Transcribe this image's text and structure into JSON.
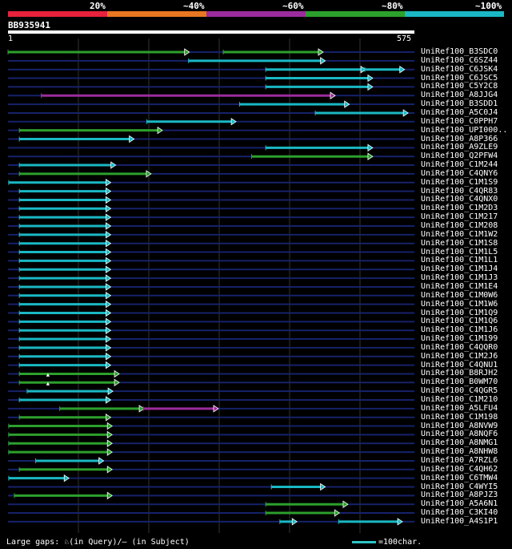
{
  "header": {
    "identity_labels": [
      "20%",
      "~40%",
      "~60%",
      "~80%",
      "~100%"
    ],
    "identity_colors": [
      "#e8223c",
      "#e87722",
      "#9c2c9c",
      "#2ca02c",
      "#1ab8c4"
    ],
    "query_id": "BB935941",
    "query_start": "1",
    "query_end": "575"
  },
  "hits": [
    {
      "label": "UniRef100_B3SDC0",
      "color": "#2ca02c",
      "segs": [
        [
          1,
          256
        ],
        [
          305,
          445
        ]
      ]
    },
    {
      "label": "UniRef100_C6SZ44",
      "color": "#1ab8c4",
      "segs": [
        [
          256,
          448
        ]
      ]
    },
    {
      "label": "UniRef100_C6JSK4",
      "color": "#1ab8c4",
      "segs": [
        [
          365,
          505
        ],
        [
          505,
          560
        ]
      ]
    },
    {
      "label": "UniRef100_C6JSC5",
      "color": "#1ab8c4",
      "segs": [
        [
          365,
          515
        ]
      ]
    },
    {
      "label": "UniRef100_C5Y2C8",
      "color": "#1ab8c4",
      "segs": [
        [
          365,
          515
        ]
      ]
    },
    {
      "label": "UniRef100_A8JJG4",
      "color": "#9c2c9c",
      "segs": [
        [
          48,
          462
        ]
      ]
    },
    {
      "label": "UniRef100_B3SDD1",
      "color": "#1ab8c4",
      "segs": [
        [
          328,
          482
        ]
      ]
    },
    {
      "label": "UniRef100_A5C0J4",
      "color": "#1ab8c4",
      "segs": [
        [
          435,
          565
        ]
      ]
    },
    {
      "label": "UniRef100_C0PPH7",
      "color": "#1ab8c4",
      "segs": [
        [
          197,
          322
        ]
      ]
    },
    {
      "label": "UniRef100_UPI000..",
      "color": "#2ca02c",
      "segs": [
        [
          17,
          218
        ]
      ]
    },
    {
      "label": "UniRef100_A8P366",
      "color": "#1ab8c4",
      "segs": [
        [
          17,
          178
        ]
      ]
    },
    {
      "label": "UniRef100_A9ZLE9",
      "color": "#1ab8c4",
      "segs": [
        [
          365,
          515
        ]
      ]
    },
    {
      "label": "UniRef100_Q2PFW4",
      "color": "#2ca02c",
      "segs": [
        [
          345,
          515
        ]
      ]
    },
    {
      "label": "UniRef100_C1M244",
      "color": "#1ab8c4",
      "segs": [
        [
          17,
          152
        ]
      ]
    },
    {
      "label": "UniRef100_C4QNY6",
      "color": "#2ca02c",
      "segs": [
        [
          17,
          202
        ]
      ]
    },
    {
      "label": "UniRef100_C1M1S9",
      "color": "#1ab8c4",
      "segs": [
        [
          2,
          145
        ]
      ]
    },
    {
      "label": "UniRef100_C4QR83",
      "color": "#1ab8c4",
      "segs": [
        [
          17,
          145
        ]
      ]
    },
    {
      "label": "UniRef100_C4QNX0",
      "color": "#1ab8c4",
      "segs": [
        [
          17,
          145
        ]
      ]
    },
    {
      "label": "UniRef100_C1M2D3",
      "color": "#1ab8c4",
      "segs": [
        [
          17,
          145
        ]
      ]
    },
    {
      "label": "UniRef100_C1M217",
      "color": "#1ab8c4",
      "segs": [
        [
          17,
          145
        ]
      ]
    },
    {
      "label": "UniRef100_C1M208",
      "color": "#1ab8c4",
      "segs": [
        [
          17,
          145
        ]
      ]
    },
    {
      "label": "UniRef100_C1M1W2",
      "color": "#1ab8c4",
      "segs": [
        [
          17,
          145
        ]
      ]
    },
    {
      "label": "UniRef100_C1M1S8",
      "color": "#1ab8c4",
      "segs": [
        [
          17,
          145
        ]
      ]
    },
    {
      "label": "UniRef100_C1M1L5",
      "color": "#1ab8c4",
      "segs": [
        [
          17,
          145
        ]
      ]
    },
    {
      "label": "UniRef100_C1M1L1",
      "color": "#1ab8c4",
      "segs": [
        [
          17,
          145
        ]
      ]
    },
    {
      "label": "UniRef100_C1M1J4",
      "color": "#1ab8c4",
      "segs": [
        [
          17,
          145
        ]
      ]
    },
    {
      "label": "UniRef100_C1M1J3",
      "color": "#1ab8c4",
      "segs": [
        [
          17,
          145
        ]
      ]
    },
    {
      "label": "UniRef100_C1M1E4",
      "color": "#1ab8c4",
      "segs": [
        [
          17,
          145
        ]
      ]
    },
    {
      "label": "UniRef100_C1M0W6",
      "color": "#1ab8c4",
      "segs": [
        [
          17,
          145
        ]
      ]
    },
    {
      "label": "UniRef100_C1M1W6",
      "color": "#1ab8c4",
      "segs": [
        [
          17,
          145
        ]
      ]
    },
    {
      "label": "UniRef100_C1M1Q9",
      "color": "#1ab8c4",
      "segs": [
        [
          17,
          145
        ]
      ]
    },
    {
      "label": "UniRef100_C1M1Q6",
      "color": "#1ab8c4",
      "segs": [
        [
          17,
          145
        ]
      ]
    },
    {
      "label": "UniRef100_C1M1J6",
      "color": "#1ab8c4",
      "segs": [
        [
          17,
          145
        ]
      ]
    },
    {
      "label": "UniRef100_C1M199",
      "color": "#1ab8c4",
      "segs": [
        [
          17,
          145
        ]
      ]
    },
    {
      "label": "UniRef100_C4QQR0",
      "color": "#1ab8c4",
      "segs": [
        [
          17,
          145
        ]
      ]
    },
    {
      "label": "UniRef100_C1M2J6",
      "color": "#1ab8c4",
      "segs": [
        [
          17,
          145
        ]
      ]
    },
    {
      "label": "UniRef100_C4QNU1",
      "color": "#1ab8c4",
      "segs": [
        [
          17,
          145
        ]
      ]
    },
    {
      "label": "UniRef100_B8RJH2",
      "color": "#2ca02c",
      "segs": [
        [
          17,
          157
        ]
      ],
      "gap": 55
    },
    {
      "label": "UniRef100_B0WM70",
      "color": "#2ca02c",
      "segs": [
        [
          17,
          157
        ]
      ],
      "gap": 55
    },
    {
      "label": "UniRef100_C4QGR5",
      "color": "#1ab8c4",
      "segs": [
        [
          28,
          148
        ]
      ]
    },
    {
      "label": "UniRef100_C1M210",
      "color": "#1ab8c4",
      "segs": [
        [
          17,
          145
        ]
      ]
    },
    {
      "label": "UniRef100_A5LFU4",
      "color": "#2ca02c",
      "segs": [
        [
          74,
          192
        ],
        [
          192,
          297
        ]
      ],
      "seg2color": "#9c2c9c"
    },
    {
      "label": "UniRef100_C1M198",
      "color": "#2ca02c",
      "segs": [
        [
          17,
          145
        ]
      ]
    },
    {
      "label": "UniRef100_A8NVW9",
      "color": "#2ca02c",
      "segs": [
        [
          2,
          147
        ]
      ]
    },
    {
      "label": "UniRef100_A8NQF6",
      "color": "#2ca02c",
      "segs": [
        [
          2,
          147
        ]
      ]
    },
    {
      "label": "UniRef100_A8NMG1",
      "color": "#2ca02c",
      "segs": [
        [
          2,
          147
        ]
      ]
    },
    {
      "label": "UniRef100_A8NHW8",
      "color": "#2ca02c",
      "segs": [
        [
          2,
          147
        ]
      ]
    },
    {
      "label": "UniRef100_A7RZL6",
      "color": "#1ab8c4",
      "segs": [
        [
          40,
          135
        ]
      ]
    },
    {
      "label": "UniRef100_C4QH62",
      "color": "#2ca02c",
      "segs": [
        [
          17,
          147
        ]
      ]
    },
    {
      "label": "UniRef100_C6TMW4",
      "color": "#1ab8c4",
      "segs": [
        [
          2,
          86
        ]
      ]
    },
    {
      "label": "UniRef100_C4WYI5",
      "color": "#1ab8c4",
      "segs": [
        [
          373,
          448
        ]
      ]
    },
    {
      "label": "UniRef100_A8PJZ3",
      "color": "#2ca02c",
      "segs": [
        [
          10,
          147
        ]
      ]
    },
    {
      "label": "UniRef100_A5A6N1",
      "color": "#2ca02c",
      "segs": [
        [
          365,
          480
        ]
      ]
    },
    {
      "label": "UniRef100_C3KI40",
      "color": "#2ca02c",
      "segs": [
        [
          365,
          468
        ]
      ]
    },
    {
      "label": "UniRef100_A4S1P1",
      "color": "#1ab8c4",
      "segs": [
        [
          385,
          408
        ],
        [
          468,
          557
        ]
      ]
    }
  ],
  "footer": {
    "gaps_legend": "Large gaps: ♘(in Query)/– (in Subject)",
    "scale_legend": "=100char."
  }
}
